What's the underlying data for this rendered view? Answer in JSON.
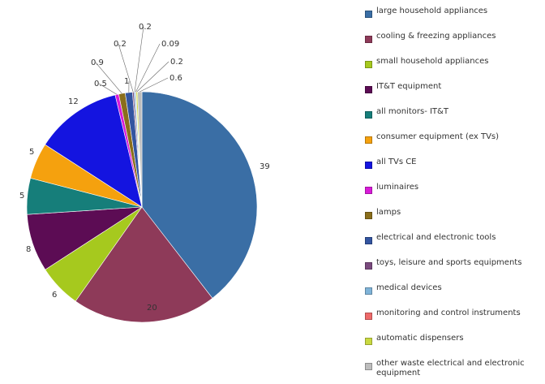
{
  "chart_data": {
    "type": "pie",
    "series": [
      {
        "label": "large household appliances",
        "value": 39,
        "display": "39",
        "color": "#3a6ea5"
      },
      {
        "label": "cooling & freezing appliances",
        "value": 20,
        "display": "20",
        "color": "#8e3a59"
      },
      {
        "label": "small household appliances",
        "value": 6,
        "display": "6",
        "color": "#a6c91e"
      },
      {
        "label": "IT&T equipment",
        "value": 8,
        "display": "8",
        "color": "#5c0c54"
      },
      {
        "label": "all monitors- IT&T",
        "value": 5,
        "display": "5",
        "color": "#167e7a"
      },
      {
        "label": "consumer equipment (ex TVs)",
        "value": 5,
        "display": "5",
        "color": "#f5a10e"
      },
      {
        "label": "all TVs CE",
        "value": 12,
        "display": "12",
        "color": "#1414e0"
      },
      {
        "label": "luminaires",
        "value": 0.5,
        "display": "0.5",
        "color": "#d81bd8"
      },
      {
        "label": "lamps",
        "value": 0.9,
        "display": "0.9",
        "color": "#8a6e1c"
      },
      {
        "label": "electrical and electronic tools",
        "value": 1,
        "display": "1",
        "color": "#3355a0"
      },
      {
        "label": "toys, leisure and sports equipments",
        "value": 0.2,
        "display": "0.2",
        "color": "#7a4a7e"
      },
      {
        "label": "medical devices",
        "value": 0.2,
        "display": "0.2",
        "color": "#7fb3d8"
      },
      {
        "label": "monitoring and control instruments",
        "value": 0.09,
        "display": "0.09",
        "color": "#ee6a6a"
      },
      {
        "label": "automatic dispensers",
        "value": 0.2,
        "display": "0.2",
        "color": "#c9d940"
      },
      {
        "label": "other waste electrical and electronic equipment",
        "value": 0.6,
        "display": "0.6",
        "color": "#bdbdbd"
      }
    ]
  }
}
